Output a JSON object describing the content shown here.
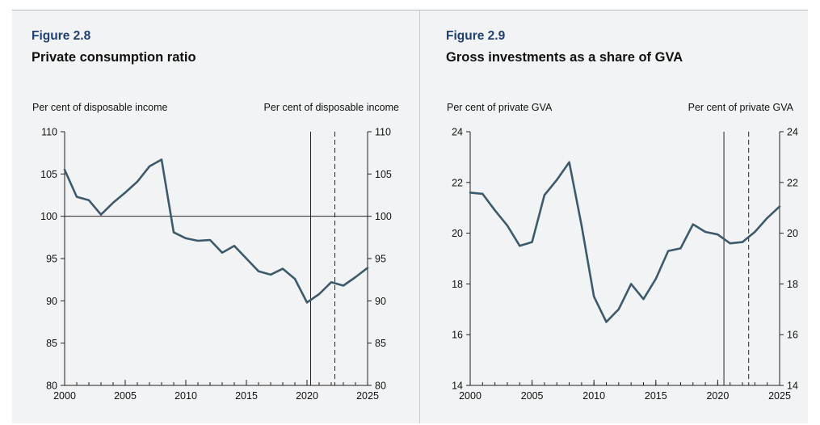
{
  "colors": {
    "series": "#3d5a6c",
    "figure_number": "#1f3f73",
    "panel_bg": "#f2f3f4"
  },
  "figures": [
    {
      "number": "Figure 2.8",
      "title": "Private consumption ratio",
      "left_unit": "Per cent of disposable income",
      "right_unit": "Per cent of disposable income"
    },
    {
      "number": "Figure 2.9",
      "title": "Gross investments as a share of GVA",
      "left_unit": "Per cent of private GVA",
      "right_unit": "Per cent of private GVA"
    }
  ],
  "chart_data": [
    {
      "type": "line",
      "title": "Private consumption ratio",
      "ylabel": "Per cent of disposable income",
      "y2label": "Per cent of disposable income",
      "xlim": [
        2000,
        2025
      ],
      "ylim": [
        80,
        110
      ],
      "x_ticks": [
        2000,
        2005,
        2010,
        2015,
        2020,
        2025
      ],
      "y_ticks": [
        80,
        85,
        90,
        95,
        100,
        105,
        110
      ],
      "x_tick_labels": [
        "2000",
        "2005",
        "2010",
        "2015",
        "2020",
        "2025"
      ],
      "y_tick_labels": [
        "80",
        "85",
        "90",
        "95",
        "100",
        "105",
        "110"
      ],
      "reference_line_y": 100,
      "vertical_solid_x": 2020.3,
      "vertical_dashed_x": 2022.3,
      "grid": false,
      "series": [
        {
          "x": [
            2000,
            2001,
            2002,
            2003,
            2004,
            2005,
            2006,
            2007,
            2008,
            2009,
            2010,
            2011,
            2012,
            2013,
            2014,
            2015,
            2016,
            2017,
            2018,
            2019,
            2020,
            2021,
            2022,
            2023,
            2024,
            2025
          ],
          "values": [
            105.5,
            102.3,
            101.9,
            100.2,
            101.6,
            102.8,
            104.1,
            105.9,
            106.7,
            98.1,
            97.4,
            97.1,
            97.2,
            95.7,
            96.5,
            95.0,
            93.5,
            93.1,
            93.8,
            92.6,
            89.8,
            90.8,
            92.2,
            91.8,
            92.8,
            93.9
          ]
        }
      ]
    },
    {
      "type": "line",
      "title": "Gross investments as a share of GVA",
      "ylabel": "Per cent of private GVA",
      "y2label": "Per cent of private GVA",
      "xlim": [
        2000,
        2025
      ],
      "ylim": [
        14,
        24
      ],
      "x_ticks": [
        2000,
        2005,
        2010,
        2015,
        2020,
        2025
      ],
      "y_ticks": [
        14,
        16,
        18,
        20,
        22,
        24
      ],
      "x_tick_labels": [
        "2000",
        "2005",
        "2010",
        "2015",
        "2020",
        "2025"
      ],
      "y_tick_labels": [
        "14",
        "16",
        "18",
        "20",
        "22",
        "24"
      ],
      "vertical_solid_x": 2020.5,
      "vertical_dashed_x": 2022.5,
      "grid": false,
      "series": [
        {
          "x": [
            2000,
            2001,
            2002,
            2003,
            2004,
            2005,
            2006,
            2007,
            2008,
            2009,
            2010,
            2011,
            2012,
            2013,
            2014,
            2015,
            2016,
            2017,
            2018,
            2019,
            2020,
            2021,
            2022,
            2023,
            2024,
            2025
          ],
          "values": [
            21.6,
            21.55,
            20.9,
            20.3,
            19.5,
            19.65,
            21.5,
            22.1,
            22.8,
            20.3,
            17.5,
            16.5,
            17.0,
            18.0,
            17.4,
            18.2,
            19.3,
            19.4,
            20.35,
            20.05,
            19.95,
            19.6,
            19.65,
            20.05,
            20.6,
            21.05
          ]
        }
      ]
    }
  ]
}
